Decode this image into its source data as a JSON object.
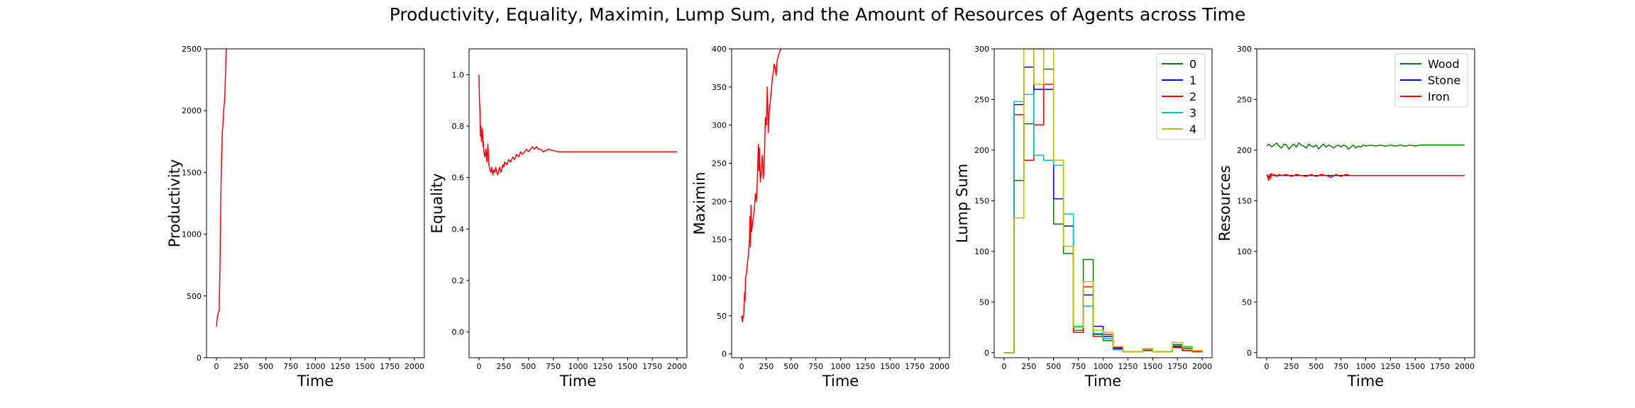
{
  "suptitle": "Productivity, Equality, Maximin, Lump Sum, and the Amount of Resources of Agents across Time",
  "chart_data": [
    {
      "id": "productivity",
      "type": "line",
      "xlabel": "Time",
      "ylabel": "Productivity",
      "xlim": [
        -100,
        2100
      ],
      "ylim": [
        0,
        2500
      ],
      "xticks": [
        0,
        250,
        500,
        750,
        1000,
        1250,
        1500,
        1750,
        2000
      ],
      "yticks": [
        0,
        500,
        1000,
        1500,
        2000,
        2500
      ],
      "series": [
        {
          "color": "#ff0000",
          "x": [
            0,
            10,
            20,
            28,
            35,
            40,
            45,
            50,
            55,
            60,
            65,
            70,
            75,
            80,
            85,
            90,
            95,
            100
          ],
          "y": [
            250,
            330,
            370,
            380,
            700,
            1000,
            1300,
            1550,
            1700,
            1830,
            1880,
            1950,
            2020,
            2060,
            2100,
            2250,
            2400,
            2500
          ]
        }
      ]
    },
    {
      "id": "equality",
      "type": "line",
      "xlabel": "Time",
      "ylabel": "Equality",
      "xlim": [
        -100,
        2100
      ],
      "ylim": [
        -0.1,
        1.1
      ],
      "xticks": [
        0,
        250,
        500,
        750,
        1000,
        1250,
        1500,
        1750,
        2000
      ],
      "yticks": [
        "0.0",
        "0.2",
        "0.4",
        "0.6",
        "0.8",
        "1.0"
      ],
      "series": [
        {
          "color": "#ff0000",
          "x": [
            0,
            5,
            10,
            15,
            20,
            25,
            30,
            35,
            40,
            45,
            50,
            60,
            70,
            80,
            90,
            100,
            110,
            120,
            130,
            140,
            150,
            160,
            170,
            180,
            190,
            200,
            210,
            220,
            230,
            240,
            250,
            260,
            280,
            300,
            320,
            340,
            360,
            380,
            400,
            420,
            440,
            460,
            480,
            500,
            520,
            540,
            560,
            580,
            600,
            620,
            650,
            700,
            750,
            800,
            900,
            1000,
            1200,
            1400,
            1600,
            1800,
            2000
          ],
          "y": [
            1.0,
            0.9,
            0.86,
            0.76,
            0.8,
            0.74,
            0.77,
            0.79,
            0.72,
            0.74,
            0.7,
            0.68,
            0.71,
            0.66,
            0.73,
            0.65,
            0.63,
            0.62,
            0.64,
            0.61,
            0.63,
            0.62,
            0.64,
            0.62,
            0.61,
            0.63,
            0.64,
            0.62,
            0.63,
            0.65,
            0.64,
            0.66,
            0.65,
            0.67,
            0.66,
            0.68,
            0.67,
            0.69,
            0.68,
            0.7,
            0.69,
            0.7,
            0.71,
            0.7,
            0.71,
            0.72,
            0.71,
            0.72,
            0.71,
            0.71,
            0.7,
            0.71,
            0.705,
            0.7,
            0.7,
            0.7,
            0.7,
            0.7,
            0.7,
            0.7,
            0.7
          ]
        }
      ]
    },
    {
      "id": "maximin",
      "type": "line",
      "xlabel": "Time",
      "ylabel": "Maximin",
      "xlim": [
        -100,
        2100
      ],
      "ylim": [
        -5,
        400
      ],
      "xticks": [
        0,
        250,
        500,
        750,
        1000,
        1250,
        1500,
        1750,
        2000
      ],
      "yticks": [
        0,
        50,
        100,
        150,
        200,
        250,
        300,
        350,
        400
      ],
      "series": [
        {
          "color": "#ff0000",
          "x": [
            0,
            5,
            10,
            15,
            20,
            25,
            30,
            35,
            40,
            50,
            60,
            70,
            80,
            85,
            90,
            95,
            100,
            110,
            120,
            130,
            140,
            150,
            160,
            170,
            175,
            180,
            190,
            200,
            210,
            220,
            230,
            240,
            250,
            260,
            270,
            280,
            290,
            300,
            310,
            320,
            330,
            340,
            350,
            360,
            370,
            380,
            390,
            400
          ],
          "y": [
            50,
            45,
            42,
            50,
            48,
            60,
            80,
            70,
            100,
            105,
            120,
            130,
            150,
            180,
            140,
            195,
            160,
            170,
            180,
            190,
            210,
            200,
            230,
            275,
            240,
            270,
            225,
            240,
            260,
            230,
            250,
            310,
            300,
            350,
            290,
            320,
            330,
            345,
            360,
            370,
            380,
            375,
            365,
            385,
            390,
            395,
            398,
            400
          ]
        }
      ]
    },
    {
      "id": "lump-sum",
      "type": "line",
      "xlabel": "Time",
      "ylabel": "Lump Sum",
      "xlim": [
        -100,
        2100
      ],
      "ylim": [
        -5,
        300
      ],
      "xticks": [
        0,
        250,
        500,
        750,
        1000,
        1250,
        1500,
        1750,
        2000
      ],
      "yticks": [
        0,
        50,
        100,
        150,
        200,
        250,
        300
      ],
      "legend": {
        "loc": "upper right",
        "entries": [
          "0",
          "1",
          "2",
          "3",
          "4"
        ]
      },
      "step_x": [
        0,
        100,
        200,
        300,
        400,
        500,
        600,
        700,
        800,
        900,
        1000,
        1100,
        1200,
        1300,
        1400,
        1500,
        1600,
        1700,
        1800,
        1900,
        2000
      ],
      "series": [
        {
          "name": "0",
          "color": "#008000",
          "values": [
            0,
            170,
            226,
            300,
            280,
            127,
            98,
            22,
            92,
            18,
            12,
            3,
            1,
            1,
            3,
            1,
            1,
            8,
            4,
            1,
            1
          ]
        },
        {
          "name": "1",
          "color": "#0000ff",
          "values": [
            0,
            245,
            282,
            260,
            260,
            152,
            125,
            20,
            57,
            26,
            16,
            4,
            1,
            1,
            3,
            1,
            1,
            6,
            2,
            1,
            1
          ]
        },
        {
          "name": "2",
          "color": "#ff0000",
          "values": [
            0,
            235,
            190,
            225,
            265,
            190,
            105,
            20,
            65,
            16,
            18,
            5,
            1,
            1,
            2,
            1,
            1,
            5,
            2,
            1,
            1
          ]
        },
        {
          "name": "3",
          "color": "#00bfbf",
          "values": [
            0,
            248,
            255,
            195,
            190,
            185,
            137,
            26,
            46,
            19,
            14,
            3,
            1,
            1,
            3,
            1,
            1,
            7,
            6,
            2,
            1
          ]
        },
        {
          "name": "4",
          "color": "#bfbf00",
          "values": [
            0,
            133,
            300,
            265,
            300,
            190,
            105,
            25,
            70,
            22,
            20,
            6,
            1,
            1,
            4,
            1,
            1,
            10,
            5,
            2,
            1
          ]
        }
      ]
    },
    {
      "id": "resources",
      "type": "line",
      "xlabel": "Time",
      "ylabel": "Resources",
      "xlim": [
        -100,
        2100
      ],
      "ylim": [
        -5,
        300
      ],
      "xticks": [
        0,
        250,
        500,
        750,
        1000,
        1250,
        1500,
        1750,
        2000
      ],
      "yticks": [
        0,
        50,
        100,
        150,
        200,
        250,
        300
      ],
      "legend": {
        "loc": "upper right",
        "entries": [
          "Wood",
          "Stone",
          "Iron"
        ]
      },
      "series": [
        {
          "name": "Wood",
          "color": "#008000",
          "x": [
            0,
            25,
            50,
            75,
            100,
            125,
            150,
            175,
            200,
            225,
            250,
            275,
            300,
            325,
            350,
            375,
            400,
            425,
            450,
            475,
            500,
            525,
            550,
            575,
            600,
            625,
            650,
            675,
            700,
            725,
            750,
            775,
            800,
            825,
            850,
            875,
            900,
            925,
            950,
            975,
            1000,
            1050,
            1100,
            1150,
            1200,
            1250,
            1300,
            1350,
            1400,
            1450,
            1500,
            1550,
            1600,
            1700,
            1800,
            1900,
            2000
          ],
          "y": [
            204,
            206,
            203,
            205,
            207,
            204,
            202,
            206,
            205,
            201,
            204,
            206,
            203,
            207,
            205,
            204,
            202,
            206,
            204,
            203,
            205,
            201,
            204,
            206,
            203,
            205,
            204,
            202,
            204,
            205,
            203,
            205,
            204,
            201,
            203,
            205,
            202,
            204,
            203,
            205,
            204,
            205,
            204,
            205,
            204,
            205,
            204,
            205,
            204,
            205,
            204,
            205,
            205,
            205,
            205,
            205,
            205
          ]
        },
        {
          "name": "Stone",
          "color": "#0000ff",
          "x": [
            0,
            20,
            40,
            60,
            100,
            200,
            400,
            600,
            800,
            1000,
            1500,
            2000
          ],
          "y": [
            175,
            174,
            176,
            175,
            175,
            175,
            175,
            175,
            175,
            175,
            175,
            175
          ]
        },
        {
          "name": "Iron",
          "color": "#ff0000",
          "x": [
            0,
            10,
            20,
            30,
            40,
            50,
            60,
            80,
            100,
            125,
            150,
            200,
            250,
            300,
            350,
            400,
            450,
            500,
            550,
            600,
            650,
            700,
            750,
            800,
            850,
            900,
            1000,
            1500,
            2000
          ],
          "y": [
            176,
            174,
            170,
            176,
            172,
            177,
            175,
            176,
            174,
            176,
            175,
            176,
            174,
            176,
            175,
            174,
            176,
            174,
            176,
            175,
            173,
            176,
            174,
            176,
            175,
            175,
            175,
            175,
            175
          ]
        }
      ]
    }
  ]
}
